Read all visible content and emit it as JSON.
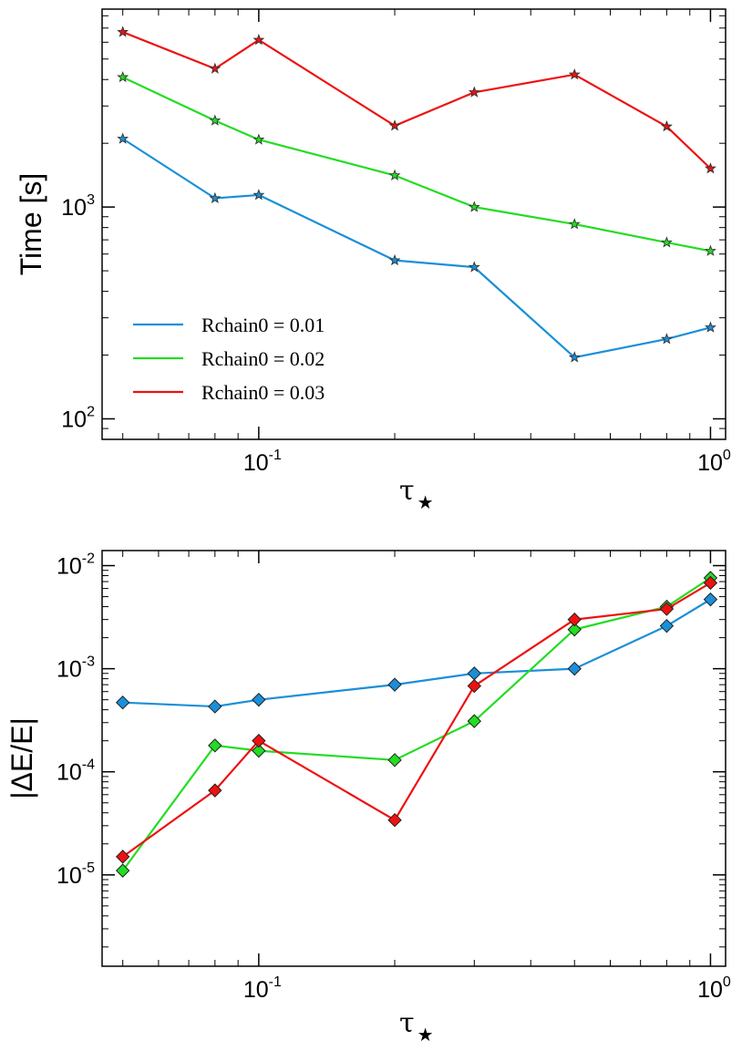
{
  "chart_data": [
    {
      "type": "line",
      "xscale": "log",
      "yscale": "log",
      "xlim": [
        0.045,
        1.08
      ],
      "ylim": [
        80,
        8600
      ],
      "xlabel": "τ",
      "xlabel_sub": "★",
      "ylabel": "Time [s]",
      "marker": "star",
      "legend_position": "lower-left",
      "x_ticks": [
        {
          "base": "10",
          "exp": "-1",
          "value": 0.1
        },
        {
          "base": "10",
          "exp": "0",
          "value": 1.0
        }
      ],
      "y_ticks": [
        {
          "base": "10",
          "exp": "2",
          "value": 100
        },
        {
          "base": "10",
          "exp": "3",
          "value": 1000
        }
      ],
      "x": [
        0.05,
        0.08,
        0.1,
        0.2,
        0.3,
        0.5,
        0.8,
        1.0
      ],
      "series": [
        {
          "name": "Rchain0 = 0.01",
          "color": "#1a8fd9",
          "values": [
            2100,
            1100,
            1140,
            560,
            520,
            195,
            238,
            270
          ]
        },
        {
          "name": "Rchain0 = 0.02",
          "color": "#22dd22",
          "values": [
            4100,
            2560,
            2080,
            1410,
            1000,
            830,
            680,
            620
          ]
        },
        {
          "name": "Rchain0 = 0.03",
          "color": "#ee1111",
          "values": [
            6700,
            4500,
            6150,
            2420,
            3480,
            4220,
            2400,
            1520
          ]
        }
      ]
    },
    {
      "type": "line",
      "xscale": "log",
      "yscale": "log",
      "xlim": [
        0.045,
        1.08
      ],
      "ylim": [
        1.3e-06,
        0.014
      ],
      "xlabel": "τ",
      "xlabel_sub": "★",
      "ylabel": "|ΔE/E|",
      "marker": "diamond",
      "x_ticks": [
        {
          "base": "10",
          "exp": "-1",
          "value": 0.1
        },
        {
          "base": "10",
          "exp": "0",
          "value": 1.0
        }
      ],
      "y_ticks": [
        {
          "base": "10",
          "exp": "-5",
          "value": 1e-05
        },
        {
          "base": "10",
          "exp": "-4",
          "value": 0.0001
        },
        {
          "base": "10",
          "exp": "-3",
          "value": 0.001
        },
        {
          "base": "10",
          "exp": "-2",
          "value": 0.01
        }
      ],
      "x": [
        0.05,
        0.08,
        0.1,
        0.2,
        0.3,
        0.5,
        0.8,
        1.0
      ],
      "series": [
        {
          "name": "Rchain0 = 0.01",
          "color": "#1a8fd9",
          "values": [
            0.00047,
            0.00043,
            0.0005,
            0.0007,
            0.0009,
            0.001,
            0.0026,
            0.0047
          ]
        },
        {
          "name": "Rchain0 = 0.02",
          "color": "#22dd22",
          "values": [
            1.1e-05,
            0.00018,
            0.00016,
            0.00013,
            0.00031,
            0.0024,
            0.004,
            0.0076
          ]
        },
        {
          "name": "Rchain0 = 0.03",
          "color": "#ee1111",
          "values": [
            1.5e-05,
            6.6e-05,
            0.0002,
            3.4e-05,
            0.00068,
            0.003,
            0.0038,
            0.0068
          ]
        }
      ]
    }
  ]
}
